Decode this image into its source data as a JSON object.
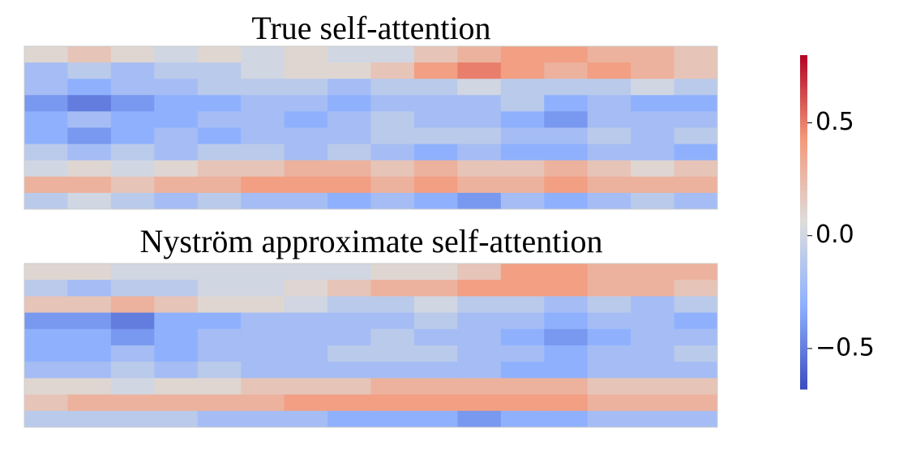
{
  "chart_data": {
    "type": "heatmap",
    "colormap": "coolwarm",
    "clim": [
      -0.68,
      0.8
    ],
    "cticks": [
      {
        "value": 0.5,
        "label": "0.5"
      },
      {
        "value": 0,
        "label": "0.0"
      },
      {
        "value": -0.5,
        "label": "−0.5"
      }
    ],
    "panels": [
      {
        "title": "True self-attention",
        "values": [
          [
            0.1,
            0.2,
            0.1,
            0.0,
            0.1,
            0.0,
            0.1,
            0.0,
            0.0,
            0.2,
            0.3,
            0.4,
            0.4,
            0.3,
            0.3,
            0.2
          ],
          [
            -0.2,
            -0.1,
            -0.2,
            -0.1,
            -0.1,
            0.0,
            0.1,
            0.1,
            0.2,
            0.4,
            0.5,
            0.4,
            0.3,
            0.4,
            0.3,
            0.2
          ],
          [
            -0.2,
            -0.3,
            -0.2,
            -0.2,
            -0.1,
            -0.1,
            -0.1,
            -0.2,
            -0.1,
            -0.1,
            0.0,
            -0.1,
            -0.1,
            -0.1,
            0.0,
            -0.1
          ],
          [
            -0.4,
            -0.5,
            -0.4,
            -0.3,
            -0.3,
            -0.2,
            -0.2,
            -0.3,
            -0.2,
            -0.2,
            -0.2,
            -0.1,
            -0.3,
            -0.2,
            -0.3,
            -0.3
          ],
          [
            -0.3,
            -0.2,
            -0.3,
            -0.3,
            -0.2,
            -0.2,
            -0.3,
            -0.2,
            -0.1,
            -0.2,
            -0.2,
            -0.3,
            -0.4,
            -0.2,
            -0.2,
            -0.2
          ],
          [
            -0.3,
            -0.4,
            -0.3,
            -0.2,
            -0.3,
            -0.2,
            -0.2,
            -0.2,
            -0.1,
            -0.1,
            -0.1,
            -0.2,
            -0.2,
            -0.1,
            -0.2,
            -0.1
          ],
          [
            -0.1,
            -0.2,
            -0.1,
            -0.2,
            -0.1,
            -0.1,
            -0.2,
            -0.1,
            -0.2,
            -0.3,
            -0.2,
            -0.3,
            -0.3,
            -0.2,
            -0.2,
            -0.3
          ],
          [
            0.0,
            0.1,
            0.0,
            0.1,
            0.2,
            0.2,
            0.3,
            0.3,
            0.2,
            0.3,
            0.2,
            0.2,
            0.3,
            0.2,
            0.1,
            0.2
          ],
          [
            0.3,
            0.3,
            0.2,
            0.3,
            0.3,
            0.4,
            0.4,
            0.4,
            0.3,
            0.4,
            0.3,
            0.3,
            0.4,
            0.3,
            0.3,
            0.3
          ],
          [
            -0.1,
            0.0,
            -0.1,
            -0.2,
            -0.1,
            -0.2,
            -0.2,
            -0.3,
            -0.2,
            -0.3,
            -0.4,
            -0.2,
            -0.3,
            -0.2,
            -0.1,
            -0.2
          ]
        ]
      },
      {
        "title": "Nyström approximate self-attention",
        "values": [
          [
            0.1,
            0.1,
            0.0,
            0.0,
            0.0,
            0.0,
            0.0,
            0.0,
            0.1,
            0.1,
            0.2,
            0.4,
            0.4,
            0.3,
            0.3,
            0.3
          ],
          [
            -0.1,
            -0.2,
            -0.1,
            -0.1,
            0.0,
            0.0,
            0.1,
            0.2,
            0.3,
            0.3,
            0.4,
            0.4,
            0.4,
            0.3,
            0.3,
            0.2
          ],
          [
            0.2,
            0.2,
            0.3,
            0.2,
            0.1,
            0.1,
            0.0,
            -0.1,
            -0.1,
            0.0,
            -0.1,
            -0.1,
            -0.2,
            -0.1,
            -0.2,
            -0.1
          ],
          [
            -0.4,
            -0.4,
            -0.5,
            -0.3,
            -0.3,
            -0.2,
            -0.2,
            -0.2,
            -0.2,
            -0.1,
            -0.2,
            -0.2,
            -0.3,
            -0.2,
            -0.2,
            -0.3
          ],
          [
            -0.3,
            -0.3,
            -0.4,
            -0.3,
            -0.2,
            -0.2,
            -0.2,
            -0.2,
            -0.1,
            -0.2,
            -0.2,
            -0.3,
            -0.4,
            -0.3,
            -0.2,
            -0.2
          ],
          [
            -0.3,
            -0.3,
            -0.2,
            -0.3,
            -0.2,
            -0.2,
            -0.2,
            -0.1,
            -0.1,
            -0.1,
            -0.2,
            -0.2,
            -0.3,
            -0.2,
            -0.2,
            -0.1
          ],
          [
            -0.2,
            -0.2,
            -0.1,
            -0.2,
            -0.1,
            -0.2,
            -0.2,
            -0.2,
            -0.2,
            -0.2,
            -0.2,
            -0.3,
            -0.3,
            -0.2,
            -0.2,
            -0.2
          ],
          [
            0.1,
            0.1,
            0.0,
            0.1,
            0.1,
            0.2,
            0.2,
            0.2,
            0.3,
            0.3,
            0.3,
            0.3,
            0.3,
            0.2,
            0.2,
            0.2
          ],
          [
            0.2,
            0.3,
            0.3,
            0.3,
            0.3,
            0.3,
            0.4,
            0.4,
            0.4,
            0.4,
            0.4,
            0.4,
            0.4,
            0.3,
            0.3,
            0.3
          ],
          [
            -0.1,
            -0.1,
            -0.1,
            -0.1,
            -0.2,
            -0.2,
            -0.2,
            -0.3,
            -0.3,
            -0.3,
            -0.4,
            -0.3,
            -0.3,
            -0.2,
            -0.2,
            -0.2
          ]
        ]
      }
    ]
  }
}
